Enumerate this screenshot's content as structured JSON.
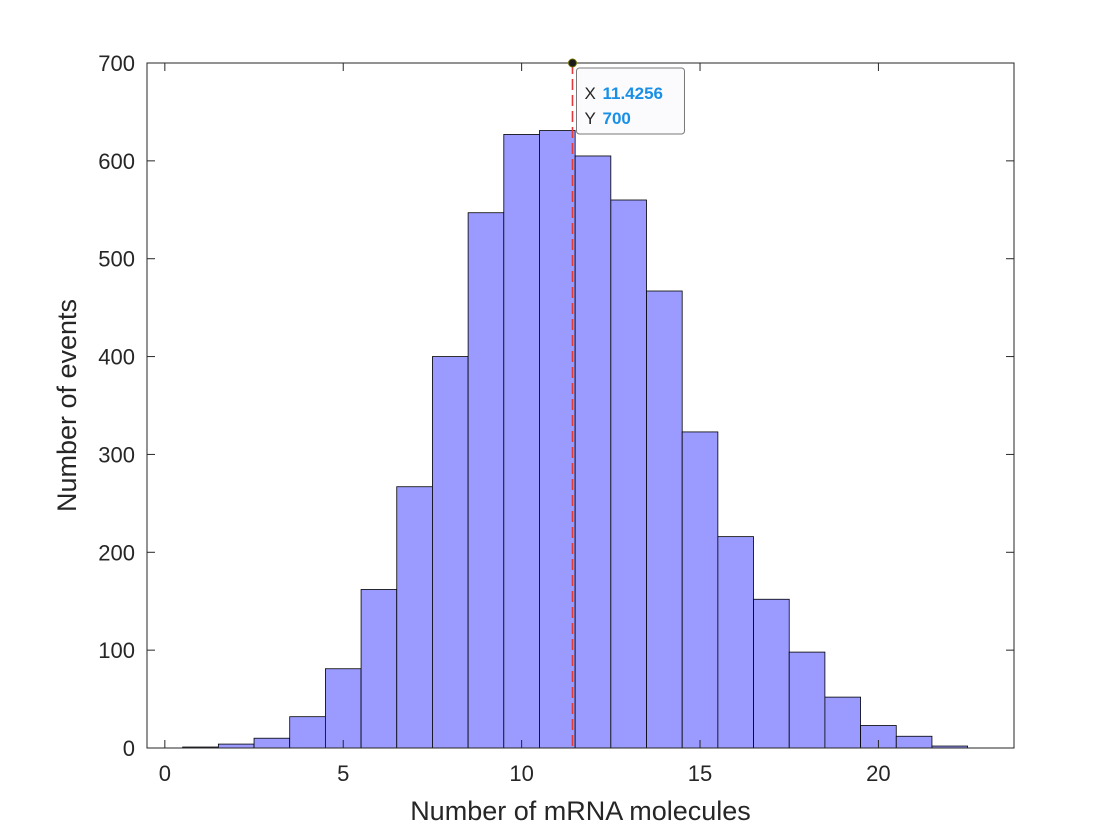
{
  "chart_data": {
    "type": "bar",
    "subtype": "histogram",
    "title": "",
    "xlabel": "Number of mRNA molecules",
    "ylabel": "Number of events",
    "xlim": [
      -0.5,
      23.8
    ],
    "ylim": [
      0,
      700
    ],
    "xticks": [
      0,
      5,
      10,
      15,
      20
    ],
    "yticks": [
      0,
      100,
      200,
      300,
      400,
      500,
      600,
      700
    ],
    "bin_width": 1,
    "bin_centers": [
      1,
      2,
      3,
      4,
      5,
      6,
      7,
      8,
      9,
      10,
      11,
      12,
      13,
      14,
      15,
      16,
      17,
      18,
      19,
      20,
      21,
      22
    ],
    "values": [
      1,
      4,
      10,
      32,
      81,
      162,
      267,
      400,
      547,
      627,
      631,
      605,
      560,
      467,
      323,
      216,
      152,
      98,
      52,
      23,
      12,
      2
    ],
    "grid": false,
    "legend": "none",
    "colors": {
      "bar_fill": "#9a9aff",
      "bar_edge": "#000000",
      "marker_line": "#e03a3a",
      "tip_value": "#1a8fe6"
    },
    "annotations": [
      {
        "type": "vertical-dashed-line",
        "x": 11.4256
      },
      {
        "type": "datatip",
        "x": 11.4256,
        "y": 700,
        "x_key": "X",
        "y_key": "Y",
        "x_text": "11.4256",
        "y_text": "700"
      }
    ]
  }
}
